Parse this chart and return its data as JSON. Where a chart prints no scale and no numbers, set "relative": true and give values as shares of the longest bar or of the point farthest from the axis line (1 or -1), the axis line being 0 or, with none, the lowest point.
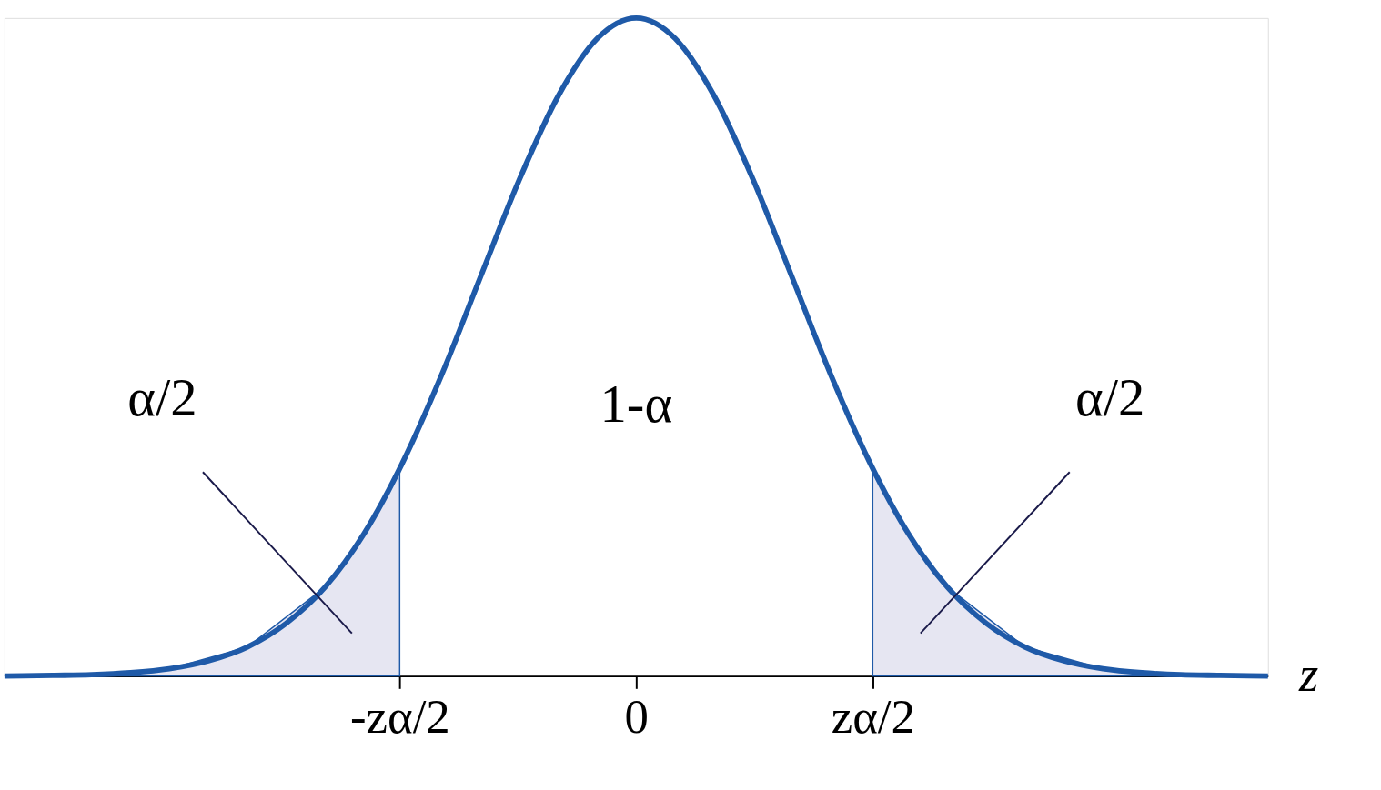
{
  "chart_data": {
    "type": "line",
    "relative": true,
    "xlabel": "z",
    "xlim": [
      -4.06,
      4.06
    ],
    "xticks": [
      {
        "value": -1.52,
        "label": "-zα/2"
      },
      0,
      {
        "value": 1.52,
        "label": "zα/2"
      }
    ],
    "grid": false,
    "marker": "none",
    "line_style": "solid",
    "series": [
      {
        "type": "area",
        "color": "#e6e6f2",
        "x": [
          -4.06,
          -3.5,
          -3,
          -2.5,
          -2,
          -1.75,
          -1.52
        ],
        "values": [
          0,
          0.002,
          0.011,
          0.044,
          0.135,
          0.216,
          0.315
        ]
      },
      {
        "type": "area",
        "color": "#e6e6f2",
        "x": [
          1.52,
          1.75,
          2,
          2.5,
          3,
          3.5,
          4.06
        ],
        "values": [
          0.315,
          0.216,
          0.135,
          0.044,
          0.011,
          0.002,
          0
        ]
      },
      {
        "type": "line",
        "color": "#1f5aa8",
        "x": [
          -4.06,
          -3.75,
          -3.5,
          -3.25,
          -3,
          -2.75,
          -2.5,
          -2.25,
          -2,
          -1.75,
          -1.5,
          -1.25,
          -1,
          -0.75,
          -0.5,
          -0.25,
          0,
          0.25,
          0.5,
          0.75,
          1,
          1.25,
          1.5,
          1.75,
          2,
          2.25,
          2.5,
          2.75,
          3,
          3.25,
          3.5,
          3.75,
          4.06
        ],
        "values": [
          0,
          0.001,
          0.002,
          0.005,
          0.011,
          0.023,
          0.044,
          0.08,
          0.135,
          0.216,
          0.325,
          0.458,
          0.607,
          0.755,
          0.882,
          0.969,
          1,
          0.969,
          0.882,
          0.755,
          0.607,
          0.458,
          0.325,
          0.216,
          0.135,
          0.08,
          0.044,
          0.023,
          0.011,
          0.005,
          0.002,
          0.001,
          0
        ]
      }
    ],
    "annotations": [
      "α/2",
      "1-α",
      "α/2"
    ]
  }
}
